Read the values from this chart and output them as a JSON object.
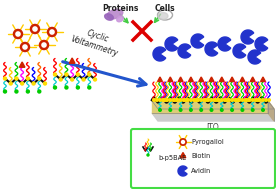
{
  "background_color": "#ffffff",
  "proteins_label": "Proteins",
  "cells_label": "Cells",
  "cv_label": "Cyclic\nVoltammetry",
  "ito_label": "ITO",
  "legend_items": [
    "Pyrogallol",
    "Biotin",
    "Avidin"
  ],
  "legend_bpsbae": "b-p5BAE",
  "legend_box_color": "#44dd44",
  "arrow_color": "#2255cc",
  "cross_color": "#cc0000",
  "green_arrow_color": "#44cc44",
  "pyrogallol_body": "#cc2200",
  "biotin_color": "#cc2200",
  "avidin_color": "#2233cc",
  "ito_surface_color": "#ddcc77",
  "ito_side_color": "#ccbbaa",
  "ito_bottom_color": "#bbbbbb",
  "black_chain_color": "#111111",
  "cyan_chain_color": "#00cccc",
  "wavy_colors": [
    "#ff0000",
    "#ffcc00",
    "#00cc00",
    "#ff00ff",
    "#0000ff",
    "#ff6600"
  ],
  "yellow_dot_color": "#ffdd00",
  "green_dot_color": "#00cc00"
}
